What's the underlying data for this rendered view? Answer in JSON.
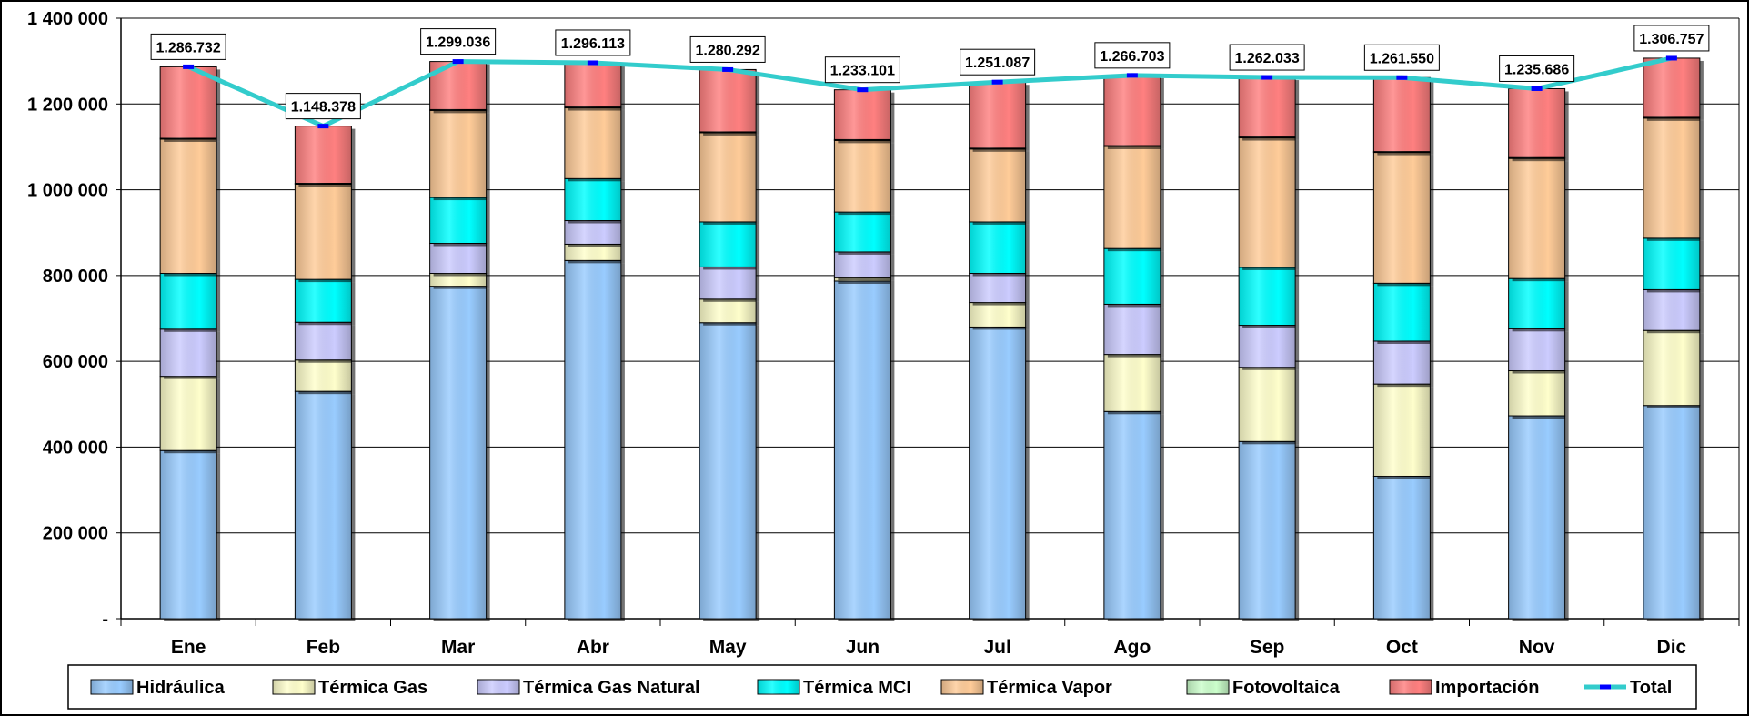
{
  "chart_data": {
    "type": "bar",
    "stacked": true,
    "categories": [
      "Ene",
      "Feb",
      "Mar",
      "Abr",
      "May",
      "Jun",
      "Jul",
      "Ago",
      "Sep",
      "Oct",
      "Nov",
      "Dic"
    ],
    "ylim": [
      0,
      1400000
    ],
    "yticks": [
      0,
      200000,
      400000,
      600000,
      800000,
      1000000,
      1200000,
      1400000
    ],
    "ytick_labels": [
      "-",
      "200 000",
      "400 000",
      "600 000",
      "800 000",
      "1 000 000",
      "1 200 000",
      "1 400 000"
    ],
    "grid": true,
    "legend": "bottom",
    "series": [
      {
        "name": "Hidráulica",
        "color": "#99ccff",
        "values": [
          392000,
          530000,
          775000,
          835000,
          690000,
          787000,
          680000,
          483000,
          413000,
          332000,
          473000,
          497000
        ]
      },
      {
        "name": "Térmica Gas",
        "color": "#ffffcc",
        "values": [
          173000,
          73000,
          30000,
          38000,
          55000,
          8000,
          57000,
          133000,
          173000,
          215000,
          105000,
          175000
        ]
      },
      {
        "name": "Térmica Gas Natural",
        "color": "#ccccff",
        "values": [
          110000,
          88000,
          70000,
          55000,
          75000,
          60000,
          68000,
          117000,
          98000,
          100000,
          98000,
          95000
        ]
      },
      {
        "name": "Térmica MCI",
        "color": "#00ffff",
        "values": [
          130000,
          100000,
          107000,
          98000,
          105000,
          93000,
          120000,
          130000,
          135000,
          135000,
          117000,
          120000
        ]
      },
      {
        "name": "Térmica Vapor",
        "color": "#ffcc99",
        "values": [
          313000,
          222000,
          203000,
          165000,
          208000,
          167000,
          170000,
          238000,
          302000,
          305000,
          280000,
          280000
        ]
      },
      {
        "name": "Fotovoltaica",
        "color": "#ccffcc",
        "values": [
          2000,
          2000,
          2000,
          2000,
          2000,
          2000,
          2000,
          2000,
          2000,
          2000,
          2000,
          2000
        ]
      },
      {
        "name": "Importación",
        "color": "#ff8080",
        "values": [
          166732,
          133378,
          112036,
          103113,
          145292,
          116101,
          154087,
          163703,
          139033,
          172550,
          160686,
          137757
        ]
      }
    ],
    "total": {
      "name": "Total",
      "color": "#33cccc",
      "values": [
        1286732,
        1148378,
        1299036,
        1296113,
        1280292,
        1233101,
        1251087,
        1266703,
        1262033,
        1261550,
        1235686,
        1306757
      ],
      "labels": [
        "1.286.732",
        "1.148.378",
        "1.299.036",
        "1.296.113",
        "1.280.292",
        "1.233.101",
        "1.251.087",
        "1.266.703",
        "1.262.033",
        "1.261.550",
        "1.235.686",
        "1.306.757"
      ]
    }
  }
}
